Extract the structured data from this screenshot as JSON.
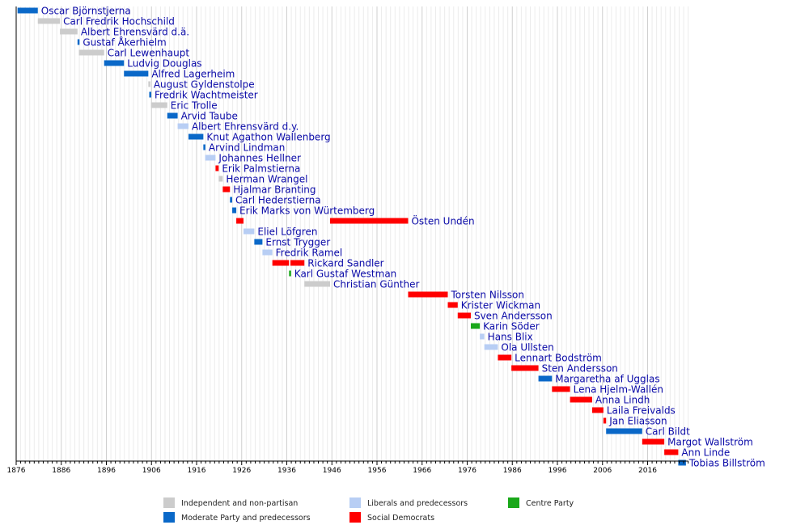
{
  "chart_data": {
    "type": "timeline",
    "x_axis": {
      "min": 1876,
      "max": 2025,
      "ticks": [
        1876,
        1886,
        1896,
        1906,
        1916,
        1926,
        1936,
        1946,
        1956,
        1966,
        1976,
        1986,
        1996,
        2006,
        2016
      ],
      "tick_labels": [
        "1876",
        "1886",
        "1896",
        "1906",
        "1916",
        "1926",
        "1936",
        "1946",
        "1956",
        "1966",
        "1976",
        "1986",
        "1996",
        "2006",
        "2016"
      ],
      "grid": "yearly minor, decade major"
    },
    "parties": {
      "ind": {
        "name": "Independent and non-partisan",
        "color": "#cccccc"
      },
      "mod": {
        "name": "Moderate Party and predecessors",
        "color": "#0a68c8"
      },
      "lib": {
        "name": "Liberals and predecessors",
        "color": "#b8cef4"
      },
      "soc": {
        "name": "Social Democrats",
        "color": "#ff0000"
      },
      "cen": {
        "name": "Centre Party",
        "color": "#1aa81a"
      }
    },
    "legend_order": [
      "ind",
      "lib",
      "cen",
      "mod",
      "soc"
    ],
    "legend_placement": "bottom",
    "rows": [
      {
        "name": "Oscar Björnstjerna",
        "segments": [
          [
            1876.3,
            1880.8,
            "mod"
          ]
        ]
      },
      {
        "name": "Carl Fredrik Hochschild",
        "segments": [
          [
            1880.8,
            1885.7,
            "ind"
          ]
        ]
      },
      {
        "name": "Albert Ehrensvärd d.ä.",
        "segments": [
          [
            1885.7,
            1889.6,
            "ind"
          ]
        ]
      },
      {
        "name": "Gustaf Åkerhielm",
        "segments": [
          [
            1889.6,
            1889.9,
            "mod"
          ]
        ]
      },
      {
        "name": "Carl Lewenhaupt",
        "segments": [
          [
            1889.9,
            1895.5,
            "ind"
          ]
        ]
      },
      {
        "name": "Ludvig Douglas",
        "segments": [
          [
            1895.5,
            1899.9,
            "mod"
          ]
        ]
      },
      {
        "name": "Alfred Lagerheim",
        "segments": [
          [
            1899.9,
            1905.3,
            "mod"
          ]
        ]
      },
      {
        "name": "August Gyldenstolpe",
        "segments": [
          [
            1905.3,
            1905.7,
            "ind"
          ]
        ]
      },
      {
        "name": "Fredrik Wachtmeister",
        "segments": [
          [
            1905.5,
            1905.9,
            "mod"
          ]
        ]
      },
      {
        "name": "Eric Trolle",
        "segments": [
          [
            1905.9,
            1909.5,
            "ind"
          ]
        ]
      },
      {
        "name": "Arvid Taube",
        "segments": [
          [
            1909.5,
            1911.8,
            "mod"
          ]
        ]
      },
      {
        "name": "Albert Ehrensvärd d.y.",
        "segments": [
          [
            1911.8,
            1914.2,
            "lib"
          ]
        ]
      },
      {
        "name": "Knut Agathon Wallenberg",
        "segments": [
          [
            1914.2,
            1917.5,
            "mod"
          ]
        ]
      },
      {
        "name": "Arvind Lindman",
        "segments": [
          [
            1917.5,
            1917.9,
            "mod"
          ]
        ]
      },
      {
        "name": "Johannes Hellner",
        "segments": [
          [
            1917.9,
            1920.2,
            "lib"
          ]
        ]
      },
      {
        "name": "Erik Palmstierna",
        "segments": [
          [
            1920.2,
            1920.9,
            "soc"
          ]
        ]
      },
      {
        "name": "Herman Wrangel",
        "segments": [
          [
            1920.9,
            1921.8,
            "ind"
          ]
        ]
      },
      {
        "name": "Hjalmar Branting",
        "segments": [
          [
            1921.8,
            1923.4,
            "soc"
          ]
        ]
      },
      {
        "name": "Carl Hederstierna",
        "segments": [
          [
            1923.4,
            1923.9,
            "mod"
          ]
        ]
      },
      {
        "name": "Erik Marks von Würtemberg",
        "segments": [
          [
            1923.9,
            1924.8,
            "mod"
          ]
        ]
      },
      {
        "name": "Östen Undén",
        "segments": [
          [
            1924.8,
            1926.4,
            "soc"
          ],
          [
            1945.6,
            1962.9,
            "soc"
          ]
        ]
      },
      {
        "name": "Eliel Löfgren",
        "segments": [
          [
            1926.4,
            1928.8,
            "lib"
          ]
        ]
      },
      {
        "name": "Ernst Trygger",
        "segments": [
          [
            1928.8,
            1930.6,
            "mod"
          ]
        ]
      },
      {
        "name": "Fredrik Ramel",
        "segments": [
          [
            1930.6,
            1932.8,
            "lib"
          ]
        ]
      },
      {
        "name": "Rickard Sandler",
        "segments": [
          [
            1932.8,
            1936.5,
            "soc"
          ],
          [
            1936.8,
            1939.9,
            "soc"
          ]
        ]
      },
      {
        "name": "Karl Gustaf Westman",
        "segments": [
          [
            1936.5,
            1936.8,
            "cen"
          ]
        ]
      },
      {
        "name": "Christian Günther",
        "segments": [
          [
            1939.9,
            1945.6,
            "ind"
          ]
        ]
      },
      {
        "name": "Torsten Nilsson",
        "segments": [
          [
            1962.9,
            1971.7,
            "soc"
          ]
        ]
      },
      {
        "name": "Krister Wickman",
        "segments": [
          [
            1971.7,
            1973.9,
            "soc"
          ]
        ]
      },
      {
        "name": "Sven Andersson",
        "segments": [
          [
            1973.9,
            1976.8,
            "soc"
          ]
        ]
      },
      {
        "name": "Karin Söder",
        "segments": [
          [
            1976.8,
            1978.8,
            "cen"
          ]
        ]
      },
      {
        "name": "Hans Blix",
        "segments": [
          [
            1978.8,
            1979.8,
            "lib"
          ]
        ]
      },
      {
        "name": "Ola Ullsten",
        "segments": [
          [
            1979.8,
            1982.8,
            "lib"
          ]
        ]
      },
      {
        "name": "Lennart Bodström",
        "segments": [
          [
            1982.8,
            1985.8,
            "soc"
          ]
        ]
      },
      {
        "name": "Sten Andersson",
        "segments": [
          [
            1985.8,
            1991.8,
            "soc"
          ]
        ]
      },
      {
        "name": "Margaretha af Ugglas",
        "segments": [
          [
            1991.8,
            1994.8,
            "mod"
          ]
        ]
      },
      {
        "name": "Lena Hjelm-Wallén",
        "segments": [
          [
            1994.8,
            1998.8,
            "soc"
          ]
        ]
      },
      {
        "name": "Anna Lindh",
        "segments": [
          [
            1998.8,
            2003.7,
            "soc"
          ]
        ]
      },
      {
        "name": "Laila Freivalds",
        "segments": [
          [
            2003.7,
            2006.2,
            "soc"
          ]
        ]
      },
      {
        "name": "Jan Eliasson",
        "segments": [
          [
            2006.2,
            2006.8,
            "soc"
          ]
        ]
      },
      {
        "name": "Carl Bildt",
        "segments": [
          [
            2006.8,
            2014.8,
            "mod"
          ]
        ]
      },
      {
        "name": "Margot Wallström",
        "segments": [
          [
            2014.8,
            2019.7,
            "soc"
          ]
        ]
      },
      {
        "name": "Ann Linde",
        "segments": [
          [
            2019.7,
            2022.8,
            "soc"
          ]
        ]
      },
      {
        "name": "Tobias Billström",
        "segments": [
          [
            2022.8,
            2024.5,
            "mod"
          ]
        ]
      }
    ]
  }
}
